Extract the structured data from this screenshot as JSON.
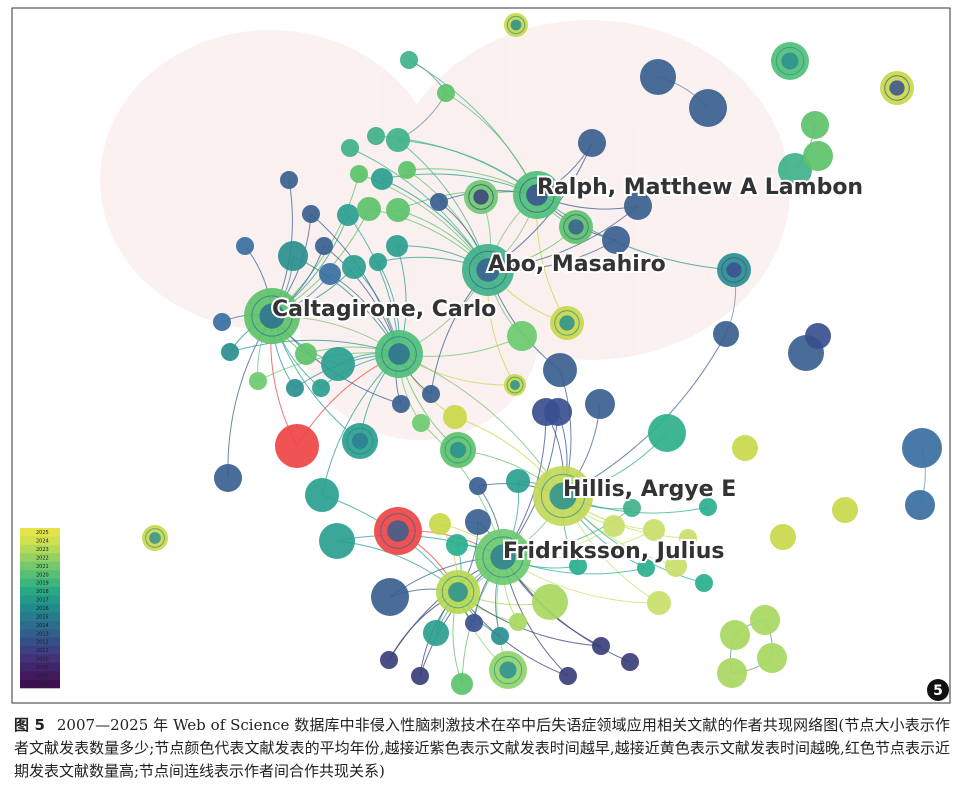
{
  "figure": {
    "labels": [
      "Ralph, Matthew A Lambon",
      "Abo, Masahiro",
      "Caltagirone, Carlo",
      "Hillis, Argye E",
      "Fridriksson, Julius"
    ],
    "legend": [
      "2025",
      "2024",
      "2023",
      "2022",
      "2021",
      "2020",
      "2019",
      "2018",
      "2017",
      "2016",
      "2015",
      "2014",
      "2013",
      "2012",
      "2011",
      "2010",
      "2009",
      "2008",
      "2007"
    ],
    "badge": "5"
  },
  "caption": {
    "label": "图 5",
    "text": "2007—2025 年 Web of Science 数据库中非侵入性脑刺激技术在卒中后失语症领域应用相关文献的作者共现网络图(节点大小表示作者文献发表数量多少;节点颜色代表文献发表的平均年份,越接近紫色表示文献发表时间越早,越接近黄色表示文献发表时间越晚,红色节点表示近期发表文献数量高;节点间连线表示作者间合作共现关系)"
  }
}
